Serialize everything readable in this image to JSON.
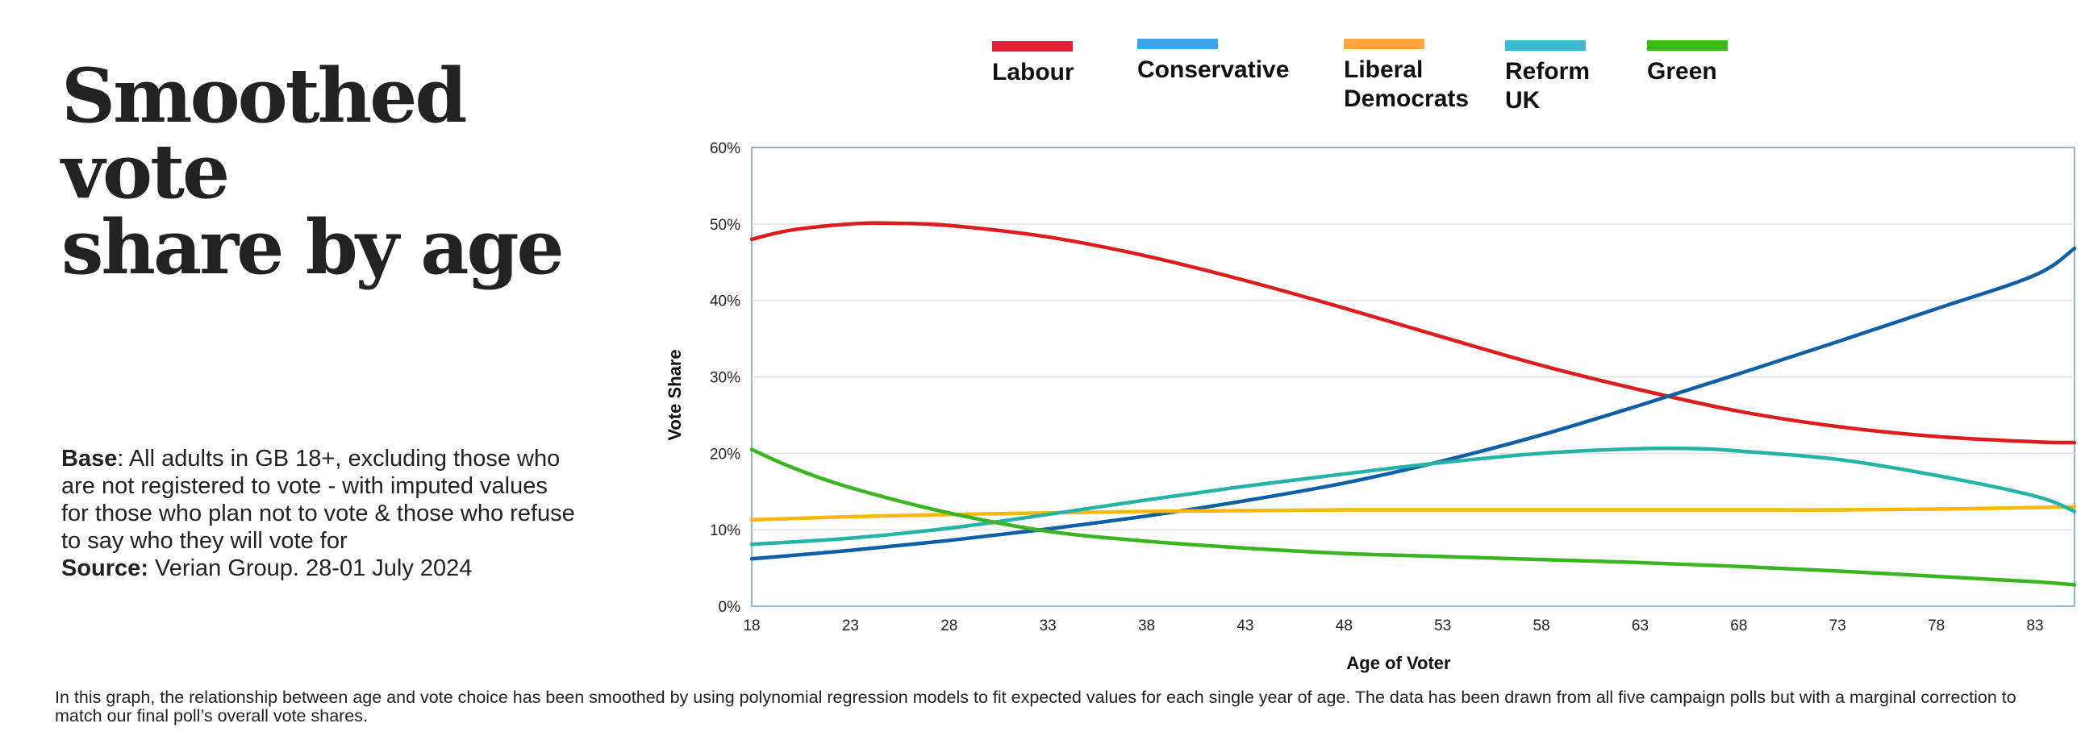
{
  "title_lines": [
    "Smoothed vote",
    "share by age"
  ],
  "base": {
    "label": "Base",
    "text": ": All adults in GB 18+, excluding those who are not registered to vote - with imputed values for those who plan not to vote & those who refuse to say who they will vote for"
  },
  "source": {
    "label": "Source:",
    "text": " Verian Group. 28-01 July 2024"
  },
  "footnote": "In this graph, the relationship between age and vote choice has been smoothed by using polynomial regression models to fit expected values for each single year of age. The data has been drawn from all five campaign polls but with a marginal correction to match our final poll’s overall vote shares.",
  "legend": [
    {
      "name": "Labour",
      "color": "#e4213b"
    },
    {
      "name": "Conservative",
      "color": "#3fa3e6"
    },
    {
      "name": "Liberal Democrats",
      "color": "#f8a83f"
    },
    {
      "name": "Reform UK",
      "color": "#39b9d4"
    },
    {
      "name": "Green",
      "color": "#38bb14"
    }
  ],
  "chart_data": {
    "type": "line",
    "title": "Smoothed vote share by age",
    "xlabel": "Age of Voter",
    "ylabel": "Vote Share",
    "xlim": [
      18,
      85
    ],
    "ylim": [
      0,
      60
    ],
    "xticks": [
      18,
      23,
      28,
      33,
      38,
      43,
      48,
      53,
      58,
      63,
      68,
      73,
      78,
      83
    ],
    "yticks": [
      0,
      10,
      20,
      30,
      40,
      50,
      60
    ],
    "ytick_labels": [
      "0%",
      "10%",
      "20%",
      "30%",
      "40%",
      "50%",
      "60%"
    ],
    "grid": true,
    "series": [
      {
        "name": "Labour",
        "color": "#dd1d1d",
        "x": [
          18,
          20,
          23,
          25,
          28,
          33,
          38,
          43,
          48,
          53,
          58,
          63,
          68,
          73,
          78,
          83,
          85
        ],
        "y": [
          48.0,
          49.2,
          50.0,
          50.1,
          49.8,
          48.3,
          45.8,
          42.6,
          39.0,
          35.2,
          31.5,
          28.3,
          25.5,
          23.5,
          22.2,
          21.5,
          21.4
        ]
      },
      {
        "name": "Conservative",
        "color": "#0e5fa8",
        "x": [
          18,
          23,
          28,
          33,
          38,
          43,
          48,
          53,
          58,
          63,
          68,
          73,
          78,
          83,
          85
        ],
        "y": [
          6.2,
          7.3,
          8.6,
          10.1,
          11.8,
          13.8,
          16.1,
          19.0,
          22.4,
          26.3,
          30.4,
          34.6,
          38.9,
          43.3,
          46.8
        ]
      },
      {
        "name": "Liberal Democrats",
        "color": "#f5b80b",
        "x": [
          18,
          23,
          28,
          33,
          38,
          43,
          48,
          53,
          58,
          63,
          68,
          73,
          78,
          83,
          85
        ],
        "y": [
          11.3,
          11.7,
          12.0,
          12.2,
          12.4,
          12.5,
          12.6,
          12.6,
          12.6,
          12.6,
          12.6,
          12.6,
          12.7,
          12.9,
          13.0
        ]
      },
      {
        "name": "Reform UK",
        "color": "#25b3a8",
        "x": [
          18,
          23,
          28,
          33,
          38,
          43,
          48,
          53,
          58,
          63,
          66,
          68,
          73,
          78,
          83,
          85
        ],
        "y": [
          8.1,
          8.9,
          10.2,
          12.0,
          13.9,
          15.7,
          17.3,
          18.8,
          20.0,
          20.6,
          20.6,
          20.3,
          19.2,
          17.1,
          14.4,
          12.4
        ]
      },
      {
        "name": "Green",
        "color": "#39b520",
        "x": [
          18,
          20,
          23,
          28,
          33,
          38,
          43,
          48,
          53,
          58,
          63,
          68,
          73,
          78,
          83,
          85
        ],
        "y": [
          20.5,
          18.2,
          15.5,
          12.2,
          9.8,
          8.5,
          7.6,
          6.9,
          6.5,
          6.1,
          5.7,
          5.2,
          4.6,
          3.9,
          3.2,
          2.8
        ]
      }
    ]
  }
}
